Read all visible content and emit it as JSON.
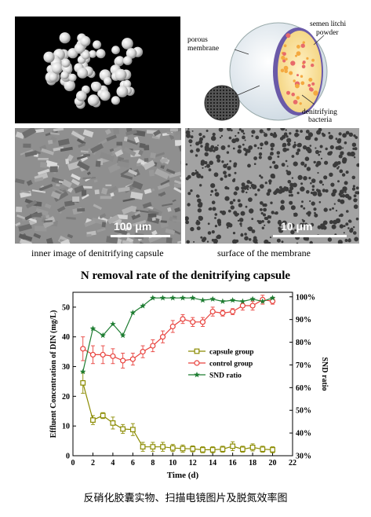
{
  "top_images": {
    "capsule_photo": {
      "alt": ""
    },
    "diagram": {
      "labels": {
        "porous_membrane": [
          "porous",
          "membrane"
        ],
        "powder": [
          "semen litchi",
          "powder"
        ],
        "bacteria": [
          "denitrifying",
          "bacteria"
        ]
      }
    }
  },
  "sem_images": [
    {
      "scale_label": "100 μm",
      "caption": "inner image of denitrifying capsule"
    },
    {
      "scale_label": "10 μm",
      "caption": "surface of the membrane"
    }
  ],
  "chart_data": {
    "type": "line",
    "title": "N removal rate of the denitrifying capsule",
    "xlabel": "Time (d)",
    "ylabel": "Effluent Concentration of DIN (mg/L)",
    "y2label": "SND ratio",
    "xlim": [
      0,
      22
    ],
    "ylim": [
      0,
      55
    ],
    "y2lim": [
      30,
      102
    ],
    "xticks": [
      0,
      2,
      4,
      6,
      8,
      10,
      12,
      14,
      16,
      18,
      20,
      22
    ],
    "yticks": [
      0,
      10,
      20,
      30,
      40,
      50
    ],
    "y2ticks": [
      30,
      40,
      50,
      60,
      70,
      80,
      90,
      100
    ],
    "y2tick_labels": [
      "30%",
      "40%",
      "50%",
      "60%",
      "70%",
      "80%",
      "90%",
      "100%"
    ],
    "legend_position": "center",
    "series": [
      {
        "name": "capsule group",
        "axis": "left",
        "color": "#8b8b00",
        "marker": "square",
        "x": [
          1,
          2,
          3,
          4,
          5,
          6,
          7,
          8,
          9,
          10,
          11,
          12,
          13,
          14,
          15,
          16,
          17,
          18,
          19,
          20
        ],
        "y": [
          24.5,
          12,
          13.5,
          11,
          9,
          8.8,
          3,
          3,
          3,
          2.6,
          2.4,
          2.3,
          2,
          2,
          2.2,
          3.2,
          2.2,
          2.8,
          2.2,
          2
        ],
        "err": [
          3.5,
          1.5,
          1,
          2,
          1.5,
          2,
          1.5,
          1.5,
          1.5,
          1.2,
          1.2,
          1,
          1,
          1,
          1,
          1.5,
          1,
          1.2,
          1,
          1
        ]
      },
      {
        "name": "control group",
        "axis": "left",
        "color": "#e8413c",
        "marker": "circle",
        "x": [
          1,
          2,
          3,
          4,
          5,
          6,
          7,
          8,
          9,
          10,
          11,
          12,
          13,
          14,
          15,
          16,
          17,
          18,
          19,
          20
        ],
        "y": [
          36,
          34,
          34,
          33.5,
          32,
          32.5,
          35,
          37,
          40,
          43.5,
          46,
          45,
          45,
          48.5,
          48,
          48.5,
          50.5,
          50.5,
          52.5,
          52
        ],
        "err": [
          4,
          3,
          3,
          2.5,
          2.5,
          2,
          2,
          2,
          2,
          2,
          1.5,
          1.5,
          1.5,
          1.5,
          1,
          1,
          1.5,
          1.5,
          1.5,
          1
        ]
      },
      {
        "name": "SND ratio",
        "axis": "right",
        "color": "#1e7d32",
        "marker": "star",
        "x": [
          1,
          2,
          3,
          4,
          5,
          6,
          7,
          8,
          9,
          10,
          11,
          12,
          13,
          14,
          15,
          16,
          17,
          18,
          19,
          20
        ],
        "y": [
          67,
          86,
          83,
          88,
          83,
          93,
          96,
          99.5,
          99.5,
          99.5,
          99.5,
          99.5,
          98.5,
          99,
          98,
          98.5,
          98,
          99,
          98,
          99.5
        ]
      }
    ]
  },
  "footer_caption": "反硝化胶囊实物、扫描电镜图片及脱氮效率图"
}
